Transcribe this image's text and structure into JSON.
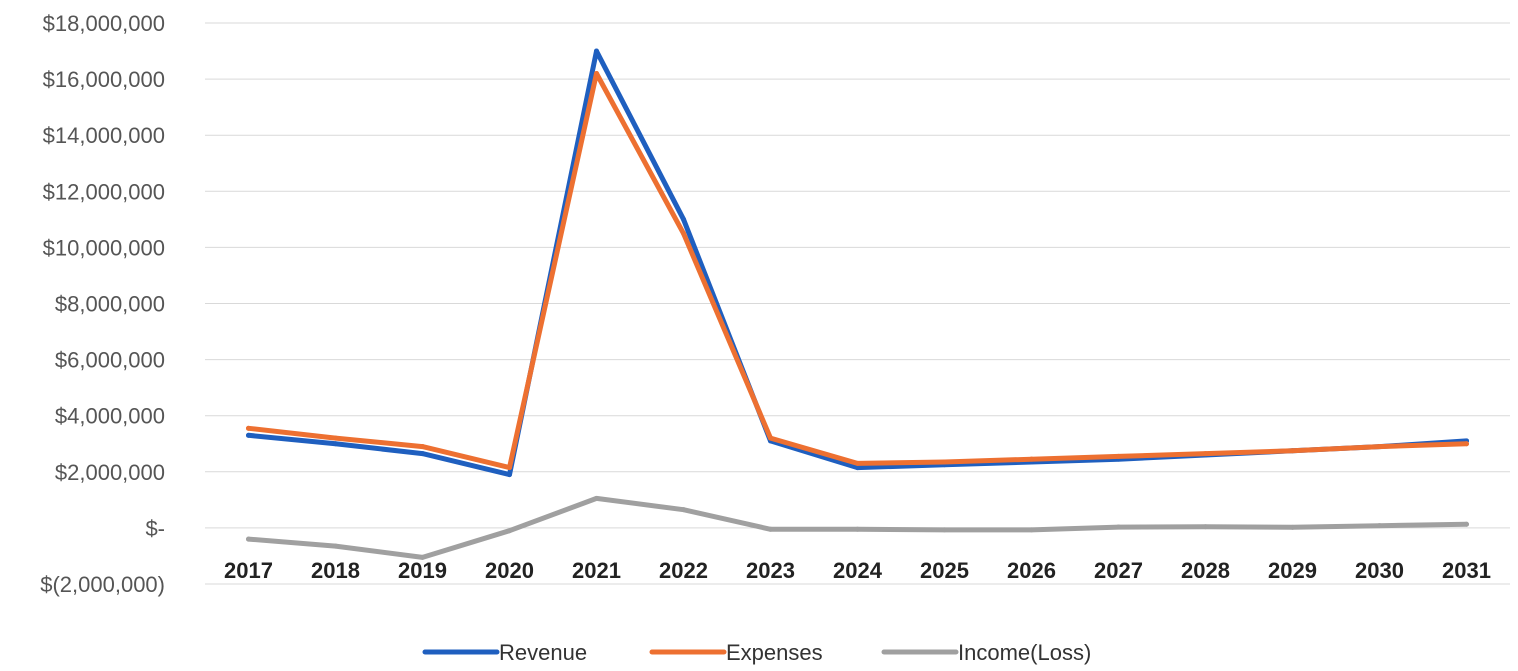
{
  "chart_data": {
    "type": "line",
    "title": "",
    "xlabel": "",
    "ylabel": "",
    "categories": [
      "2017",
      "2018",
      "2019",
      "2020",
      "2021",
      "2022",
      "2023",
      "2024",
      "2025",
      "2026",
      "2027",
      "2028",
      "2029",
      "2030",
      "2031"
    ],
    "y_ticks": [
      {
        "value": 18000000,
        "label": "$18,000,000"
      },
      {
        "value": 16000000,
        "label": "$16,000,000"
      },
      {
        "value": 14000000,
        "label": "$14,000,000"
      },
      {
        "value": 12000000,
        "label": "$12,000,000"
      },
      {
        "value": 10000000,
        "label": "$10,000,000"
      },
      {
        "value": 8000000,
        "label": "$8,000,000"
      },
      {
        "value": 6000000,
        "label": "$6,000,000"
      },
      {
        "value": 4000000,
        "label": "$4,000,000"
      },
      {
        "value": 2000000,
        "label": "$2,000,000"
      },
      {
        "value": 0,
        "label": "$-"
      },
      {
        "value": -2000000,
        "label": "$(2,000,000)"
      }
    ],
    "ylim": [
      -2000000,
      18000000
    ],
    "grid": true,
    "legend_position": "bottom",
    "series": [
      {
        "name": "Revenue",
        "color": "#1f5fbf",
        "values": [
          3300000,
          3000000,
          2650000,
          1900000,
          17000000,
          11000000,
          3100000,
          2150000,
          2250000,
          2350000,
          2450000,
          2600000,
          2750000,
          2900000,
          3100000
        ]
      },
      {
        "name": "Expenses",
        "color": "#ed7031",
        "values": [
          3550000,
          3200000,
          2900000,
          2150000,
          16200000,
          10500000,
          3200000,
          2300000,
          2350000,
          2450000,
          2550000,
          2650000,
          2750000,
          2900000,
          3000000
        ]
      },
      {
        "name": "Income(Loss)",
        "color": "#a0a0a0",
        "values": [
          -400000,
          -650000,
          -1050000,
          -100000,
          1050000,
          650000,
          -50000,
          -50000,
          -70000,
          -70000,
          30000,
          40000,
          20000,
          80000,
          130000
        ]
      }
    ]
  }
}
